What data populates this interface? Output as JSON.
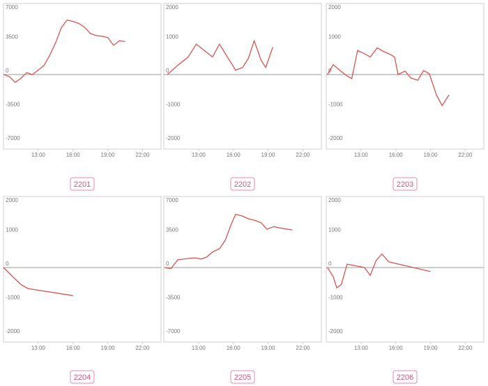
{
  "chart_data": [
    {
      "type": "line",
      "title": "2201",
      "color": "#d9534f",
      "x": [
        10,
        10.5,
        11,
        11.5,
        12,
        12.5,
        13.5,
        14,
        14.5,
        15,
        15.5,
        16,
        16.5,
        17,
        17.5,
        18,
        18.5,
        19,
        19.5,
        20,
        20.5
      ],
      "values": [
        0,
        -200,
        -810,
        -400,
        200,
        0,
        940,
        2020,
        3300,
        4880,
        5650,
        5500,
        5300,
        4900,
        4240,
        4040,
        3970,
        3840,
        3030,
        3500,
        3430
      ],
      "xlim": [
        10,
        23.6
      ],
      "ylim": [
        -7000,
        7000
      ],
      "xticks": [
        {
          "value": 13,
          "label": "13:00"
        },
        {
          "value": 16,
          "label": "16:00"
        },
        {
          "value": 19,
          "label": "19:00"
        },
        {
          "value": 22,
          "label": "22:00"
        }
      ],
      "yticks": [
        7000,
        3500,
        0,
        -3500,
        -7000
      ]
    },
    {
      "type": "line",
      "title": "2202",
      "color": "#d9534f",
      "x": [
        10.3,
        11.2,
        12.1,
        12.8,
        13.5,
        14.2,
        14.8,
        15.3,
        16.2,
        16.8,
        17.3,
        17.8,
        18.4,
        18.8,
        19.4
      ],
      "values": [
        0,
        270,
        520,
        900,
        710,
        520,
        900,
        620,
        130,
        210,
        480,
        1000,
        420,
        210,
        810
      ],
      "xlim": [
        10,
        23.6
      ],
      "ylim": [
        -2000,
        2000
      ],
      "xticks": [
        {
          "value": 13,
          "label": "13:00"
        },
        {
          "value": 16,
          "label": "16:00"
        },
        {
          "value": 19,
          "label": "19:00"
        },
        {
          "value": 22,
          "label": "22:00"
        }
      ],
      "yticks": [
        2000,
        1000,
        0,
        -1000,
        -2000
      ]
    },
    {
      "type": "line",
      "title": "2203",
      "color": "#d9534f",
      "x": [
        10.1,
        10.6,
        11.2,
        11.7,
        12.2,
        12.7,
        13.3,
        13.8,
        14.4,
        14.9,
        15.5,
        15.9,
        16.2,
        16.8,
        17.3,
        17.9,
        18.4,
        18.9,
        19.5,
        20.0,
        20.6
      ],
      "values": [
        0,
        290,
        120,
        -20,
        -120,
        710,
        620,
        520,
        790,
        690,
        600,
        520,
        0,
        100,
        -100,
        -170,
        120,
        20,
        -600,
        -920,
        -600
      ],
      "xlim": [
        10,
        23.6
      ],
      "ylim": [
        -2000,
        2000
      ],
      "xticks": [
        {
          "value": 13,
          "label": "13:00"
        },
        {
          "value": 16,
          "label": "16:00"
        },
        {
          "value": 19,
          "label": "19:00"
        },
        {
          "value": 22,
          "label": "22:00"
        }
      ],
      "yticks": [
        2000,
        1000,
        0,
        -1000,
        -2000
      ]
    },
    {
      "type": "line",
      "title": "2204",
      "color": "#d9534f",
      "x": [
        10,
        10.8,
        11.5,
        12.1,
        16.0
      ],
      "values": [
        0,
        -270,
        -500,
        -620,
        -830
      ],
      "xlim": [
        10,
        23.6
      ],
      "ylim": [
        -2000,
        2000
      ],
      "xticks": [
        {
          "value": 13,
          "label": "13:00"
        },
        {
          "value": 16,
          "label": "16:00"
        },
        {
          "value": 19,
          "label": "19:00"
        },
        {
          "value": 22,
          "label": "22:00"
        }
      ],
      "yticks": [
        2000,
        1000,
        0,
        -1000,
        -2000
      ]
    },
    {
      "type": "line",
      "title": "2205",
      "color": "#d9534f",
      "x": [
        10.1,
        10.6,
        11.2,
        12.1,
        12.7,
        13.2,
        13.7,
        14.2,
        14.8,
        15.3,
        15.8,
        16.2,
        16.8,
        17.3,
        17.8,
        18.4,
        18.9,
        19.5,
        20.0,
        21.1
      ],
      "values": [
        0,
        -130,
        800,
        940,
        1010,
        880,
        1080,
        1620,
        1950,
        2830,
        4440,
        5520,
        5320,
        5050,
        4910,
        4640,
        3970,
        4240,
        4100,
        3900
      ],
      "xlim": [
        10,
        23.6
      ],
      "ylim": [
        -7000,
        7000
      ],
      "xticks": [
        {
          "value": 13,
          "label": "13:00"
        },
        {
          "value": 16,
          "label": "16:00"
        },
        {
          "value": 19,
          "label": "19:00"
        },
        {
          "value": 22,
          "label": "22:00"
        }
      ],
      "yticks": [
        7000,
        3500,
        0,
        -3500,
        -7000
      ]
    },
    {
      "type": "line",
      "title": "2206",
      "color": "#d9534f",
      "x": [
        10.1,
        10.6,
        10.9,
        11.3,
        11.8,
        13.3,
        13.8,
        14.3,
        14.8,
        15.4,
        19.0
      ],
      "values": [
        0,
        -270,
        -600,
        -500,
        100,
        0,
        -230,
        210,
        400,
        170,
        -120
      ],
      "xlim": [
        10,
        23.6
      ],
      "ylim": [
        -2000,
        2000
      ],
      "xticks": [
        {
          "value": 13,
          "label": "13:00"
        },
        {
          "value": 16,
          "label": "16:00"
        },
        {
          "value": 19,
          "label": "19:00"
        },
        {
          "value": 22,
          "label": "22:00"
        }
      ],
      "yticks": [
        2000,
        1000,
        0,
        -1000,
        -2000
      ]
    }
  ]
}
